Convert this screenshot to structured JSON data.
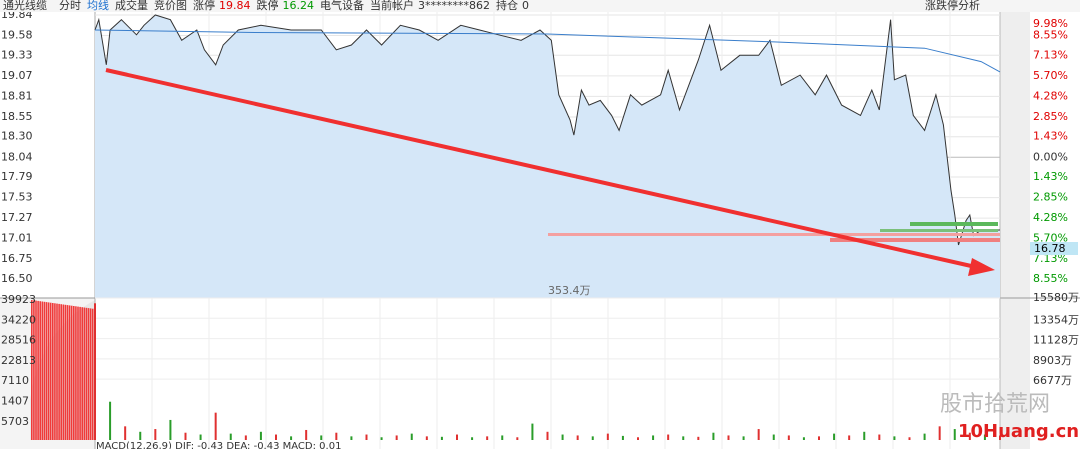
{
  "header": {
    "stock": "通光线缆",
    "tabs": [
      "分时",
      "均线",
      "成交量",
      "竞价图"
    ],
    "limit_up_label": "涨停",
    "limit_up": "19.84",
    "limit_down_label": "跌停",
    "limit_down": "16.24",
    "sector": "电气设备",
    "account_label": "当前帐户",
    "account": "3********862",
    "position_label": "持仓",
    "position": "0",
    "right_button": "涨跌停分析"
  },
  "chart_data": {
    "type": "line",
    "price_ticks": [
      19.84,
      19.58,
      19.33,
      19.07,
      18.81,
      18.55,
      {
        "value": 18.3,
        "label": "18.30"
      },
      18.04,
      17.79,
      17.53,
      17.27,
      17.01,
      16.75,
      {
        "value": 16.5,
        "label": "16.50"
      }
    ],
    "percent_labels": [
      "9.98%",
      "8.55%",
      "7.13%",
      "5.70%",
      "4.28%",
      "2.85%",
      "1.43%",
      "0.00%",
      "1.43%",
      "2.85%",
      "4.28%",
      "5.70%",
      "7.13%",
      "8.55%"
    ],
    "ylim": [
      16.5,
      19.84
    ],
    "xlim": [
      0,
      240
    ],
    "x": [
      0,
      1,
      3,
      4,
      7,
      11,
      13,
      16,
      20,
      23,
      27,
      29,
      32,
      34,
      38,
      44,
      52,
      60,
      64,
      68,
      72,
      76,
      81,
      86,
      91,
      97,
      102,
      107,
      113,
      118,
      121,
      123,
      126,
      127,
      129,
      131,
      134,
      137,
      139,
      142,
      145,
      150,
      152,
      155,
      160,
      163,
      166,
      171,
      176,
      179,
      182,
      187,
      191,
      194,
      198,
      203,
      206,
      208,
      211,
      212,
      215,
      217,
      220,
      223,
      225,
      227,
      228,
      229,
      231,
      232,
      233,
      235,
      240
    ],
    "series": [
      {
        "name": "价格",
        "color": "#333333",
        "values": [
          19.65,
          19.78,
          19.21,
          19.65,
          19.78,
          19.59,
          19.71,
          19.84,
          19.78,
          19.52,
          19.65,
          19.4,
          19.21,
          19.46,
          19.65,
          19.71,
          19.65,
          19.65,
          19.4,
          19.46,
          19.65,
          19.46,
          19.71,
          19.65,
          19.52,
          19.71,
          19.65,
          19.59,
          19.52,
          19.65,
          19.52,
          18.83,
          18.51,
          18.32,
          18.89,
          18.7,
          18.76,
          18.57,
          18.38,
          18.83,
          18.7,
          18.83,
          19.14,
          18.64,
          19.27,
          19.71,
          19.14,
          19.33,
          19.33,
          19.52,
          18.95,
          19.08,
          18.83,
          19.08,
          18.7,
          18.57,
          18.89,
          18.64,
          19.78,
          19.02,
          19.08,
          18.57,
          18.38,
          18.83,
          18.45,
          17.62,
          17.31,
          16.93,
          17.24,
          17.31,
          17.05,
          17.12,
          17.12
        ]
      },
      {
        "name": "均价",
        "color": "#3a7ecb",
        "x": [
          0,
          40,
          120,
          180,
          220,
          235,
          240
        ],
        "values": [
          19.65,
          19.62,
          19.6,
          19.5,
          19.42,
          19.25,
          19.12
        ]
      }
    ],
    "current_price": "16.78",
    "volume_note": "353.4万",
    "volume": {
      "ylim": [
        0,
        15580
      ],
      "ticks": [
        {
          "value": 15580,
          "label": "15580万"
        },
        {
          "value": 13354,
          "label": "13354万"
        },
        {
          "value": 11128,
          "label": "11128万"
        },
        {
          "value": 8903,
          "label": "8903万"
        },
        {
          "value": 6677,
          "label": "6677万"
        }
      ],
      "left_labels": [
        "39923",
        "34220",
        "28516",
        "22813",
        "7110",
        "1407",
        "5703"
      ],
      "x_step": 4,
      "values": [
        15000,
        4200,
        1500,
        900,
        1200,
        2200,
        800,
        600,
        3000,
        700,
        500,
        900,
        600,
        400,
        1100,
        500,
        800,
        400,
        600,
        300,
        500,
        700,
        400,
        350,
        600,
        300,
        400,
        500,
        300,
        1800,
        900,
        600,
        500,
        400,
        700,
        450,
        300,
        500,
        600,
        400,
        350,
        800,
        500,
        400,
        1200,
        600,
        500,
        300,
        400,
        700,
        500,
        900,
        600,
        400,
        300,
        700,
        1500,
        1200,
        800,
        600,
        500
      ]
    },
    "macd": "MACD(12,26,9)  DIF: -0.43  DEA: -0.43  MACD: 0.01"
  },
  "watermark": {
    "text": "股市拾荒网",
    "site": "10Huang.cn"
  }
}
